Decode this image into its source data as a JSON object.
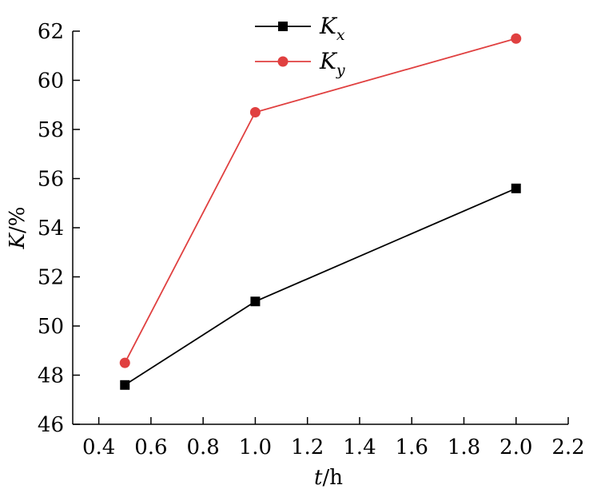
{
  "chart_data": {
    "type": "line",
    "x": [
      0.5,
      1.0,
      2.0
    ],
    "series": [
      {
        "name": "K",
        "sub": "x",
        "values": [
          47.6,
          51.0,
          55.6
        ],
        "color": "#000000",
        "marker": "square"
      },
      {
        "name": "K",
        "sub": "y",
        "values": [
          48.5,
          58.7,
          61.7
        ],
        "color": "#e04040",
        "marker": "circle"
      }
    ],
    "xlabel": {
      "var": "t",
      "unit": "/h"
    },
    "ylabel": {
      "var": "K",
      "unit": "/%"
    },
    "xlim": [
      0.3,
      2.2
    ],
    "ylim": [
      46,
      62
    ],
    "xticks": [
      "0.4",
      "0.6",
      "0.8",
      "1.0",
      "1.2",
      "1.4",
      "1.6",
      "1.8",
      "2.0",
      "2.2"
    ],
    "yticks": [
      "46",
      "48",
      "50",
      "52",
      "54",
      "56",
      "58",
      "60",
      "62"
    ],
    "grid": false,
    "legend": "top-center"
  }
}
